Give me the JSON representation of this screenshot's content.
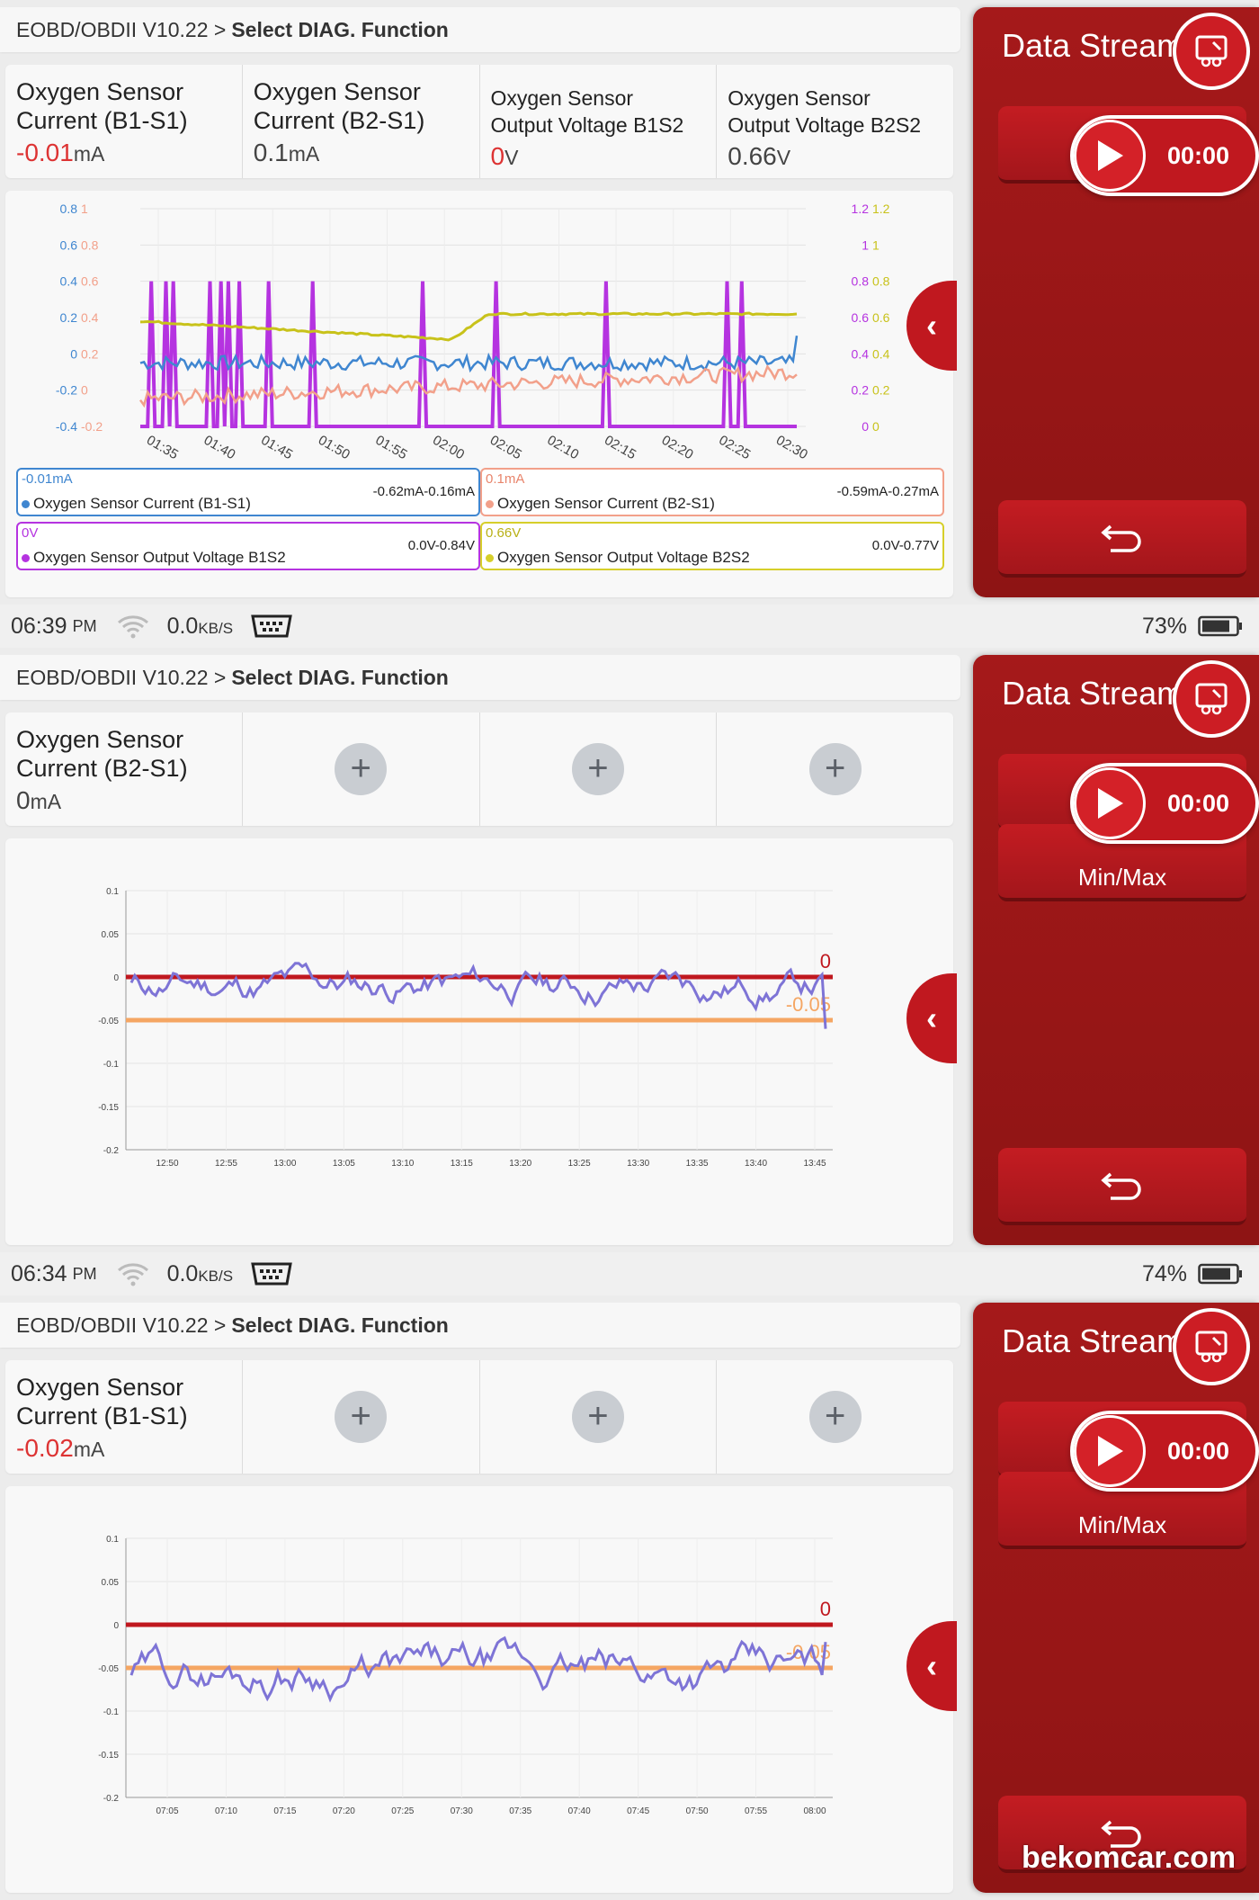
{
  "breadcrumb": {
    "app": "EOBD/OBDII V10.22 >",
    "function": "Select DIAG. Function"
  },
  "sidebar": {
    "title": "Data Stream",
    "timer": "00:00",
    "minmax_label": "Min/Max"
  },
  "status_bars": [
    {
      "time": "06:39",
      "ampm": "PM",
      "speed": "0.0",
      "speed_unit": "KB/S",
      "battery": "73%"
    },
    {
      "time": "06:34",
      "ampm": "PM",
      "speed": "0.0",
      "speed_unit": "KB/S",
      "battery": "74%"
    }
  ],
  "watermark": "bekomcar.com",
  "colors": {
    "red": "#c0181f",
    "blue": "#3f86d0",
    "salmon": "#f2a08a",
    "purple": "#b533e0",
    "yellow": "#c8c21a",
    "lavender": "#7e74d6",
    "orange": "#f5a663"
  },
  "panel1": {
    "cards": [
      {
        "name1": "Oxygen Sensor",
        "name2": "Current (B1-S1)",
        "value": "-0.01",
        "unit": "mA"
      },
      {
        "name1": "Oxygen Sensor",
        "name2": "Current (B2-S1)",
        "value": "0.1",
        "unit": "mA"
      },
      {
        "name1": "Oxygen Sensor",
        "name2": "Output Voltage B1S2",
        "value": "0",
        "unit": "V"
      },
      {
        "name1": "Oxygen Sensor",
        "name2": "Output Voltage B2S2",
        "value": "0.66",
        "unit": "V"
      }
    ],
    "legends": [
      {
        "current": "-0.01mA",
        "range": "-0.62mA-0.16mA",
        "name": "Oxygen Sensor Current (B1-S1)"
      },
      {
        "current": "0.1mA",
        "range": "-0.59mA-0.27mA",
        "name": "Oxygen Sensor Current (B2-S1)"
      },
      {
        "current": "0V",
        "range": "0.0V-0.84V",
        "name": "Oxygen Sensor Output Voltage B1S2"
      },
      {
        "current": "0.66V",
        "range": "0.0V-0.77V",
        "name": "Oxygen Sensor Output Voltage B2S2"
      }
    ]
  },
  "panel2": {
    "card": {
      "name1": "Oxygen Sensor",
      "name2": "Current (B2-S1)",
      "value": "0",
      "unit": "mA"
    }
  },
  "panel3": {
    "card": {
      "name1": "Oxygen Sensor",
      "name2": "Current (B1-S1)",
      "value": "-0.02",
      "unit": "mA"
    }
  },
  "chart_data": [
    {
      "type": "line",
      "x": [
        "01:35",
        "01:40",
        "01:45",
        "01:50",
        "01:55",
        "02:00",
        "02:05",
        "02:10",
        "02:15",
        "02:20",
        "02:25",
        "02:30"
      ],
      "axes": {
        "left_blue_ticks": [
          "0.8",
          "0.6",
          "0.4",
          "0.2",
          "0",
          "-0.2",
          "-0.4"
        ],
        "left_salmon_ticks": [
          "1",
          "0.8",
          "0.6",
          "0.4",
          "0.2",
          "0",
          "-0.2"
        ],
        "right_purple_ticks": [
          "1.2",
          "1",
          "0.8",
          "0.6",
          "0.4",
          "0.2",
          "0"
        ],
        "right_yellow_ticks": [
          "1.2",
          "1",
          "0.8",
          "0.6",
          "0.4",
          "0.2",
          "0"
        ]
      },
      "series": [
        {
          "axis": "left_blue",
          "color": "blue",
          "start": -0.05,
          "end": -0.05,
          "noise": 0.04,
          "last": 0.1
        },
        {
          "axis": "left_salmon",
          "color": "salmon",
          "start": -0.05,
          "end": 0.1,
          "noise": 0.04
        },
        {
          "axis": "right_yellow",
          "color": "yellow",
          "start": 0.58,
          "dip_to": 0.48,
          "dip_at": "02:00",
          "rise_to": 0.62
        },
        {
          "axis": "right_purple",
          "color": "purple",
          "baseline": 0.0,
          "spikes_to": 0.8
        }
      ]
    },
    {
      "type": "line",
      "x": [
        "12:50",
        "12:55",
        "13:00",
        "13:05",
        "13:10",
        "13:15",
        "13:20",
        "13:25",
        "13:30",
        "13:35",
        "13:40",
        "13:45"
      ],
      "y_ticks": [
        "0.1",
        "0.05",
        "0",
        "-0.05",
        "-0.1",
        "-0.15",
        "-0.2"
      ],
      "ylim": [
        -0.2,
        0.1
      ],
      "reference_lines": [
        {
          "value": 0,
          "color": "red",
          "label": "0"
        },
        {
          "value": -0.05,
          "color": "orange",
          "label": "-0.05"
        }
      ],
      "series": [
        {
          "color": "lavender",
          "center": -0.01,
          "noise": 0.025,
          "last": -0.06
        }
      ]
    },
    {
      "type": "line",
      "x": [
        "07:05",
        "07:10",
        "07:15",
        "07:20",
        "07:25",
        "07:30",
        "07:35",
        "07:40",
        "07:45",
        "07:50",
        "07:55",
        "08:00"
      ],
      "y_ticks": [
        "0.1",
        "0.05",
        "0",
        "-0.05",
        "-0.1",
        "-0.15",
        "-0.2"
      ],
      "ylim": [
        -0.2,
        0.1
      ],
      "reference_lines": [
        {
          "value": 0,
          "color": "red",
          "label": "0"
        },
        {
          "value": -0.05,
          "color": "orange",
          "label": "-0.05"
        }
      ],
      "series": [
        {
          "color": "lavender",
          "center": -0.055,
          "noise": 0.03,
          "last": -0.02
        }
      ]
    }
  ]
}
